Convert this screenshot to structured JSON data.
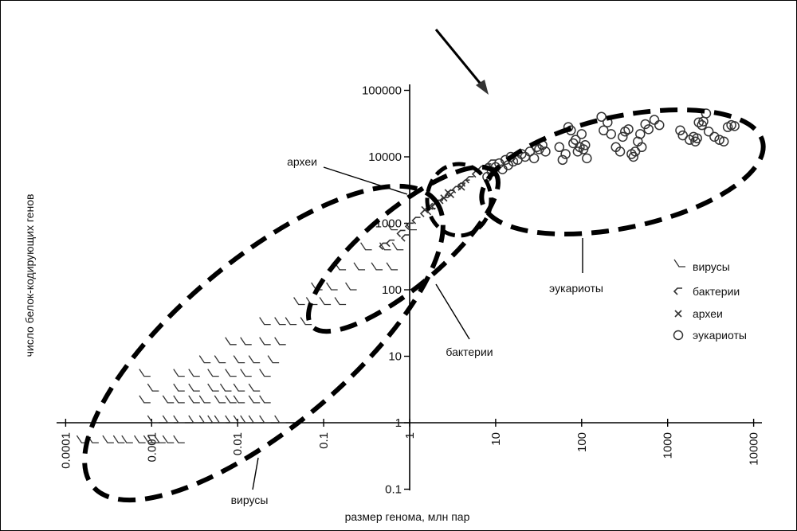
{
  "chart_data": {
    "type": "scatter",
    "title": "",
    "xlabel": "размер генома, млн пар",
    "ylabel": "число белок-кодирующих генов",
    "x_scale": "log",
    "y_scale": "log",
    "xlim": [
      0.0001,
      10000
    ],
    "ylim": [
      0.1,
      100000
    ],
    "x_ticks": [
      "0.0001",
      "0.001",
      "0.01",
      "0.1",
      "1",
      "10",
      "100",
      "1000",
      "10000"
    ],
    "y_ticks": [
      "0.1",
      "1",
      "10",
      "100",
      "1000",
      "10000",
      "100000"
    ],
    "grid": false,
    "legend_position": "right",
    "series": [
      {
        "name": "вирусы",
        "marker": "v-hook",
        "color": "#333333",
        "points": [
          [
            0.00015,
            0.5
          ],
          [
            0.0002,
            0.5
          ],
          [
            0.0003,
            0.5
          ],
          [
            0.0004,
            0.5
          ],
          [
            0.0005,
            0.5
          ],
          [
            0.0007,
            0.5
          ],
          [
            0.0009,
            0.5
          ],
          [
            0.001,
            0.5
          ],
          [
            0.0012,
            0.5
          ],
          [
            0.0015,
            0.5
          ],
          [
            0.002,
            0.5
          ],
          [
            0.001,
            1
          ],
          [
            0.0015,
            1
          ],
          [
            0.002,
            1
          ],
          [
            0.003,
            1
          ],
          [
            0.004,
            1
          ],
          [
            0.005,
            1
          ],
          [
            0.006,
            1
          ],
          [
            0.008,
            1
          ],
          [
            0.01,
            1
          ],
          [
            0.012,
            1
          ],
          [
            0.015,
            1
          ],
          [
            0.02,
            1
          ],
          [
            0.03,
            1
          ],
          [
            0.0008,
            2
          ],
          [
            0.0015,
            2
          ],
          [
            0.002,
            2
          ],
          [
            0.003,
            2
          ],
          [
            0.004,
            2
          ],
          [
            0.006,
            2
          ],
          [
            0.008,
            2
          ],
          [
            0.01,
            2
          ],
          [
            0.015,
            2
          ],
          [
            0.02,
            2
          ],
          [
            0.001,
            3
          ],
          [
            0.002,
            3
          ],
          [
            0.003,
            3
          ],
          [
            0.005,
            3
          ],
          [
            0.007,
            3
          ],
          [
            0.01,
            3
          ],
          [
            0.015,
            3
          ],
          [
            0.0008,
            5
          ],
          [
            0.002,
            5
          ],
          [
            0.003,
            5
          ],
          [
            0.005,
            5
          ],
          [
            0.008,
            5
          ],
          [
            0.012,
            5
          ],
          [
            0.02,
            5
          ],
          [
            0.004,
            8
          ],
          [
            0.006,
            8
          ],
          [
            0.01,
            8
          ],
          [
            0.015,
            8
          ],
          [
            0.025,
            8
          ],
          [
            0.008,
            15
          ],
          [
            0.012,
            15
          ],
          [
            0.02,
            15
          ],
          [
            0.03,
            15
          ],
          [
            0.02,
            30
          ],
          [
            0.03,
            30
          ],
          [
            0.04,
            30
          ],
          [
            0.06,
            30
          ],
          [
            0.05,
            60
          ],
          [
            0.07,
            60
          ],
          [
            0.1,
            60
          ],
          [
            0.15,
            60
          ],
          [
            0.08,
            100
          ],
          [
            0.12,
            100
          ],
          [
            0.2,
            100
          ],
          [
            0.15,
            200
          ],
          [
            0.25,
            200
          ],
          [
            0.4,
            200
          ],
          [
            0.6,
            200
          ],
          [
            0.3,
            400
          ],
          [
            0.5,
            400
          ],
          [
            0.7,
            400
          ],
          [
            0.6,
            800
          ],
          [
            1.0,
            800
          ]
        ]
      },
      {
        "name": "бактерии",
        "marker": "angle",
        "color": "#333333",
        "points": [
          [
            0.5,
            450
          ],
          [
            0.6,
            500
          ],
          [
            0.8,
            700
          ],
          [
            0.9,
            600
          ],
          [
            1,
            900
          ],
          [
            1.2,
            1100
          ],
          [
            1.5,
            1400
          ],
          [
            1.8,
            1500
          ],
          [
            2,
            1800
          ],
          [
            2.2,
            2000
          ],
          [
            2.5,
            2200
          ],
          [
            3,
            2800
          ],
          [
            3.5,
            3200
          ],
          [
            4,
            3600
          ],
          [
            4.5,
            4000
          ],
          [
            5,
            4500
          ],
          [
            6,
            5500
          ],
          [
            7,
            6500
          ],
          [
            8,
            7000
          ],
          [
            9,
            8000
          ]
        ]
      },
      {
        "name": "археи",
        "marker": "x",
        "color": "#333333",
        "points": [
          [
            1.5,
            1600
          ],
          [
            1.7,
            1800
          ],
          [
            2,
            2000
          ],
          [
            2.5,
            2400
          ],
          [
            2.8,
            2900
          ],
          [
            3,
            2700
          ],
          [
            4,
            3500
          ]
        ]
      },
      {
        "name": "эукариоты",
        "marker": "circle",
        "color": "#333333",
        "points": [
          [
            8,
            5000
          ],
          [
            9,
            6000
          ],
          [
            10,
            7000
          ],
          [
            11,
            8000
          ],
          [
            12,
            6500
          ],
          [
            13,
            9000
          ],
          [
            14,
            7500
          ],
          [
            15,
            10000
          ],
          [
            16,
            8500
          ],
          [
            18,
            9000
          ],
          [
            20,
            11000
          ],
          [
            22,
            10000
          ],
          [
            25,
            12000
          ],
          [
            28,
            9500
          ],
          [
            30,
            14000
          ],
          [
            32,
            13000
          ],
          [
            35,
            15000
          ],
          [
            38,
            12000
          ],
          [
            55,
            14000
          ],
          [
            60,
            9000
          ],
          [
            65,
            11000
          ],
          [
            70,
            28000
          ],
          [
            75,
            25000
          ],
          [
            80,
            16000
          ],
          [
            85,
            18000
          ],
          [
            90,
            12000
          ],
          [
            95,
            14000
          ],
          [
            100,
            22000
          ],
          [
            105,
            13000
          ],
          [
            110,
            15000
          ],
          [
            115,
            9500
          ],
          [
            170,
            40000
          ],
          [
            180,
            25000
          ],
          [
            200,
            33000
          ],
          [
            220,
            22000
          ],
          [
            250,
            14000
          ],
          [
            280,
            12000
          ],
          [
            300,
            20000
          ],
          [
            320,
            24000
          ],
          [
            350,
            26000
          ],
          [
            380,
            11000
          ],
          [
            400,
            10000
          ],
          [
            420,
            12000
          ],
          [
            450,
            17000
          ],
          [
            480,
            22000
          ],
          [
            500,
            14000
          ],
          [
            550,
            31000
          ],
          [
            600,
            26000
          ],
          [
            700,
            36000
          ],
          [
            800,
            30000
          ],
          [
            1400,
            25000
          ],
          [
            1500,
            21000
          ],
          [
            1800,
            18000
          ],
          [
            2000,
            20000
          ],
          [
            2100,
            17000
          ],
          [
            2200,
            19000
          ],
          [
            2300,
            33000
          ],
          [
            2500,
            30000
          ],
          [
            2600,
            34000
          ],
          [
            2800,
            45000
          ],
          [
            3000,
            24000
          ],
          [
            3500,
            20000
          ],
          [
            4000,
            18000
          ],
          [
            4500,
            17000
          ],
          [
            5000,
            28000
          ],
          [
            5500,
            30000
          ],
          [
            6000,
            29000
          ]
        ]
      }
    ],
    "annotations": [
      "археи",
      "эукариоты",
      "бактерии",
      "вирусы"
    ]
  }
}
